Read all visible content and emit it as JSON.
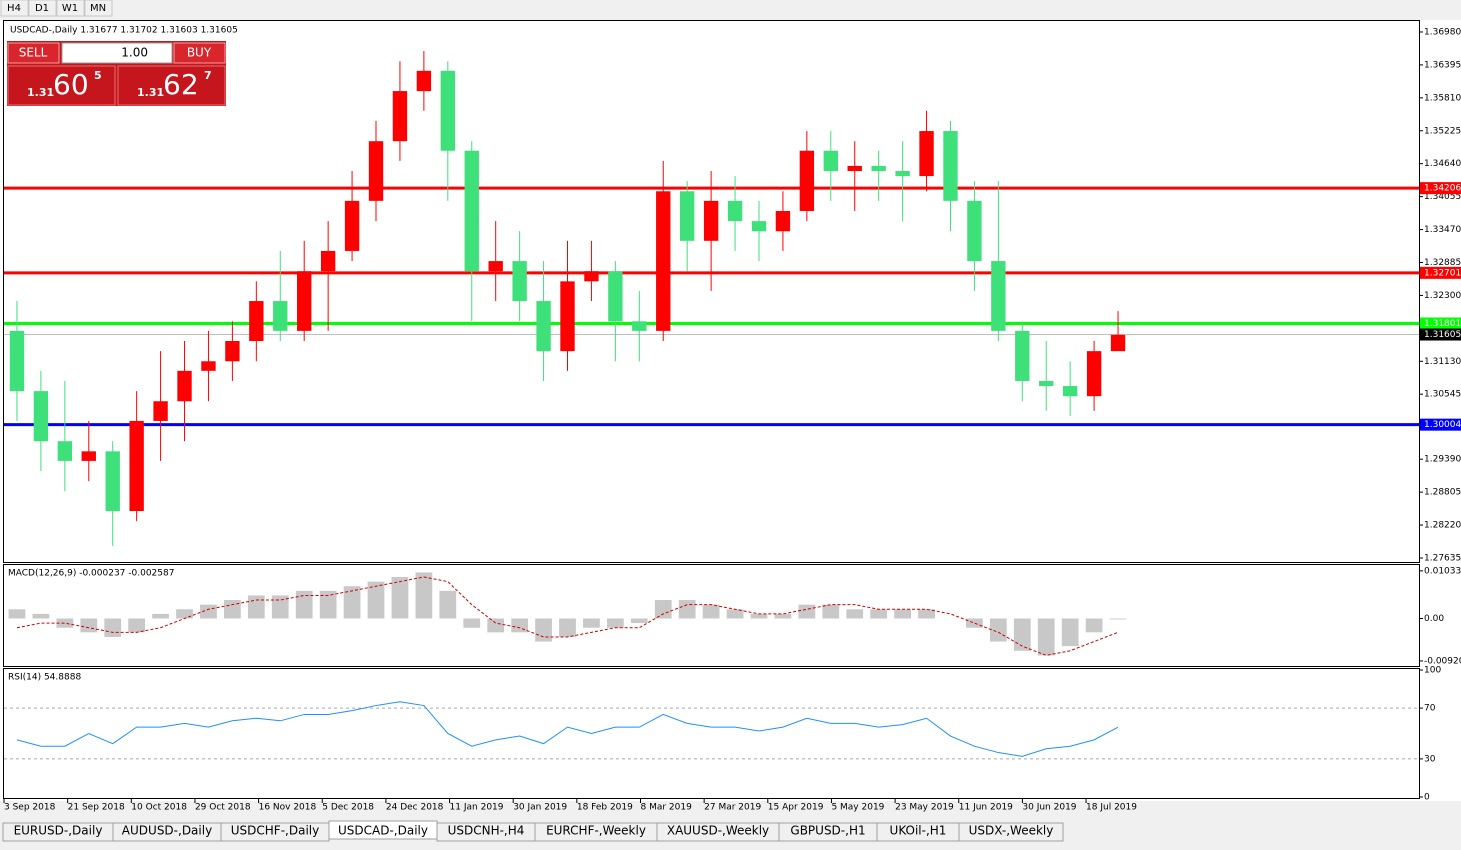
{
  "toolbar": [
    "H4",
    "D1",
    "W1",
    "MN"
  ],
  "trade_panel": {
    "sell_label": "SELL",
    "buy_label": "BUY",
    "lots": "1.00",
    "sell": {
      "big": "1.31",
      "main": "60",
      "pip": "5"
    },
    "buy": {
      "big": "1.31",
      "main": "62",
      "pip": "7"
    }
  },
  "chart": {
    "title": "USDCAD-,Daily  1.31677 1.31702 1.31603 1.31605",
    "ylim": [
      1.27564,
      1.37175
    ],
    "yticks": [
      {
        "value": 1.3698,
        "label": "1.36980"
      },
      1.36395,
      {
        "value": 1.3581,
        "label": "1.35810"
      },
      1.35225,
      {
        "value": 1.3464,
        "label": "1.34640"
      },
      1.34055,
      {
        "value": 1.3347,
        "label": "1.33470"
      },
      1.32885,
      {
        "value": 1.323,
        "label": "1.32300"
      },
      {
        "value": 1.3113,
        "label": "1.31130"
      },
      1.30545,
      {
        "value": 1.2939,
        "label": "1.29390"
      },
      1.28805,
      {
        "value": 1.2822,
        "label": "1.28220"
      },
      1.27635
    ],
    "levels": [
      {
        "value": 1.34206,
        "color": "#ff0000"
      },
      {
        "value": 1.32701,
        "color": "#ff0000"
      },
      {
        "value": 1.31801,
        "color": "#00ff00"
      },
      {
        "value": 1.30004,
        "color": "#0000ff"
      }
    ],
    "current_price": 1.31605,
    "up_color": "#ff0000",
    "down_color": "#3ee07a",
    "candles": [
      [
        1.3167,
        1.322,
        1.3007,
        1.306
      ],
      [
        1.306,
        1.3096,
        1.2918,
        1.2971
      ],
      [
        1.2971,
        1.3078,
        1.2882,
        1.2936
      ],
      [
        1.2936,
        1.3007,
        1.29,
        1.2953
      ],
      [
        1.2953,
        1.2971,
        1.2785,
        1.2847
      ],
      [
        1.2847,
        1.306,
        1.2829,
        1.3007
      ],
      [
        1.3007,
        1.3131,
        1.2936,
        1.3042
      ],
      [
        1.3042,
        1.3149,
        1.2971,
        1.3096
      ],
      [
        1.3096,
        1.3167,
        1.3042,
        1.3113
      ],
      [
        1.3113,
        1.3184,
        1.3078,
        1.3149
      ],
      [
        1.3149,
        1.3255,
        1.3113,
        1.322
      ],
      [
        1.322,
        1.3309,
        1.3149,
        1.3167
      ],
      [
        1.3167,
        1.3327,
        1.3149,
        1.3273
      ],
      [
        1.3273,
        1.3362,
        1.3167,
        1.3309
      ],
      [
        1.3309,
        1.3451,
        1.3291,
        1.3398
      ],
      [
        1.3398,
        1.354,
        1.3362,
        1.3504
      ],
      [
        1.3504,
        1.3646,
        1.3469,
        1.3593
      ],
      [
        1.3593,
        1.3664,
        1.3558,
        1.3629
      ],
      [
        1.3629,
        1.3646,
        1.3398,
        1.3487
      ],
      [
        1.3487,
        1.3504,
        1.3184,
        1.3273
      ],
      [
        1.3273,
        1.3362,
        1.322,
        1.3291
      ],
      [
        1.3291,
        1.3344,
        1.3184,
        1.322
      ],
      [
        1.322,
        1.3291,
        1.3078,
        1.3131
      ],
      [
        1.3131,
        1.3327,
        1.3096,
        1.3255
      ],
      [
        1.3255,
        1.3327,
        1.322,
        1.3273
      ],
      [
        1.3273,
        1.3291,
        1.3113,
        1.3184
      ],
      [
        1.3184,
        1.3238,
        1.3113,
        1.3167
      ],
      [
        1.3167,
        1.3469,
        1.3149,
        1.3415
      ],
      [
        1.3415,
        1.3433,
        1.3273,
        1.3327
      ],
      [
        1.3327,
        1.3451,
        1.3238,
        1.3398
      ],
      [
        1.3398,
        1.3442,
        1.3309,
        1.3362
      ],
      [
        1.3362,
        1.3398,
        1.3291,
        1.3344
      ],
      [
        1.3344,
        1.3415,
        1.3309,
        1.338
      ],
      [
        1.338,
        1.3522,
        1.3362,
        1.3487
      ],
      [
        1.3487,
        1.3522,
        1.3398,
        1.3451
      ],
      [
        1.3451,
        1.3504,
        1.338,
        1.346
      ],
      [
        1.346,
        1.3487,
        1.3398,
        1.3451
      ],
      [
        1.3451,
        1.3504,
        1.3362,
        1.3442
      ],
      [
        1.3442,
        1.3558,
        1.3415,
        1.3522
      ],
      [
        1.3522,
        1.354,
        1.3344,
        1.3398
      ],
      [
        1.3398,
        1.3433,
        1.3238,
        1.3291
      ],
      [
        1.3291,
        1.3433,
        1.3149,
        1.3167
      ],
      [
        1.3167,
        1.3184,
        1.3042,
        1.3078
      ],
      [
        1.3078,
        1.3149,
        1.3025,
        1.3069
      ],
      [
        1.3069,
        1.3113,
        1.3016,
        1.3051
      ],
      [
        1.3051,
        1.3149,
        1.3025,
        1.3131
      ],
      [
        1.3131,
        1.3202,
        1.314,
        1.316
      ]
    ],
    "dates": [
      "3 Sep 2018",
      "21 Sep 2018",
      "10 Oct 2018",
      "29 Oct 2018",
      "16 Nov 2018",
      "5 Dec 2018",
      "24 Dec 2018",
      "11 Jan 2019",
      "30 Jan 2019",
      "18 Feb 2019",
      "8 Mar 2019",
      "27 Mar 2019",
      "15 Apr 2019",
      "5 May 2019",
      "23 May 2019",
      "11 Jun 2019",
      "30 Jun 2019",
      "18 Jul 2019"
    ],
    "macd": {
      "label": "MACD(12,26,9) -0.000237 -0.002587",
      "ylim": [
        -0.0103,
        0.0116
      ],
      "yticks": [
        0.010331,
        {
          "value": 0,
          "label": "0.00"
        },
        -0.009203
      ],
      "histogram": [
        0.002,
        0.001,
        -0.002,
        -0.003,
        -0.004,
        -0.003,
        0.001,
        0.002,
        0.003,
        0.004,
        0.005,
        0.005,
        0.006,
        0.006,
        0.007,
        0.008,
        0.009,
        0.01,
        0.006,
        -0.002,
        -0.003,
        -0.003,
        -0.005,
        -0.004,
        -0.002,
        -0.002,
        -0.001,
        0.004,
        0.004,
        0.003,
        0.002,
        0.001,
        0.001,
        0.003,
        0.003,
        0.002,
        0.002,
        0.002,
        0.002,
        0.0,
        -0.002,
        -0.005,
        -0.007,
        -0.008,
        -0.006,
        -0.003,
        -0.0002
      ],
      "signal": [
        -0.002,
        -0.001,
        -0.001,
        -0.002,
        -0.003,
        -0.003,
        -0.002,
        0.0,
        0.002,
        0.003,
        0.004,
        0.004,
        0.005,
        0.005,
        0.006,
        0.007,
        0.008,
        0.009,
        0.008,
        0.003,
        -0.001,
        -0.002,
        -0.004,
        -0.004,
        -0.003,
        -0.002,
        -0.002,
        0.001,
        0.003,
        0.003,
        0.002,
        0.001,
        0.001,
        0.002,
        0.003,
        0.003,
        0.002,
        0.002,
        0.002,
        0.001,
        -0.001,
        -0.003,
        -0.006,
        -0.008,
        -0.007,
        -0.005,
        -0.003
      ]
    },
    "rsi": {
      "label": "RSI(14) 54.8888",
      "ylim": [
        0,
        100
      ],
      "yticks": [
        100,
        70,
        30,
        0
      ],
      "values": [
        45,
        40,
        40,
        50,
        42,
        55,
        55,
        58,
        55,
        60,
        62,
        60,
        65,
        65,
        68,
        72,
        75,
        72,
        50,
        40,
        45,
        48,
        42,
        55,
        50,
        55,
        55,
        65,
        58,
        55,
        55,
        52,
        55,
        62,
        58,
        58,
        55,
        57,
        62,
        48,
        40,
        35,
        32,
        38,
        40,
        45,
        55
      ]
    }
  },
  "tabs": {
    "items": [
      "EURUSD-,Daily",
      "AUDUSD-,Daily",
      "USDCHF-,Daily",
      "USDCAD-,Daily",
      "USDCNH-,H4",
      "EURCHF-,Weekly",
      "XAUUSD-,Weekly",
      "GBPUSD-,H1",
      "UKOil-,H1",
      "USDX-,Weekly"
    ],
    "active": 3
  }
}
